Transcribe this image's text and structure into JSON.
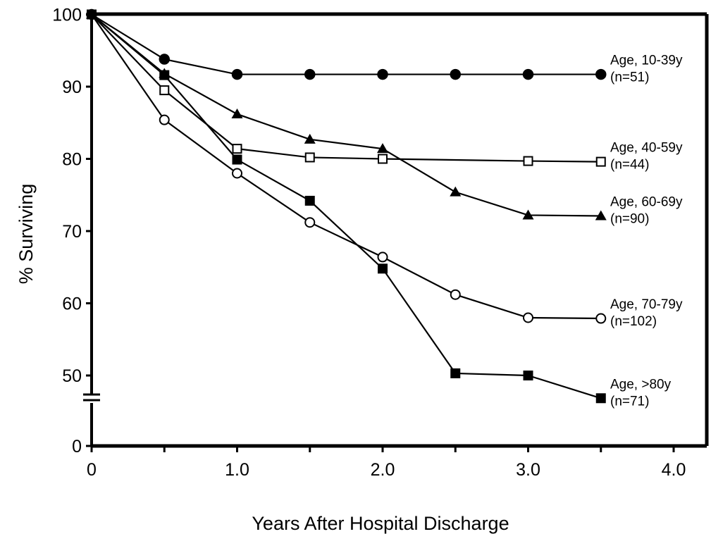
{
  "chart_data": {
    "type": "line",
    "xlabel": "Years After Hospital Discharge",
    "ylabel": "% Surviving",
    "xlim": [
      0,
      4.0
    ],
    "ylim": [
      0,
      100
    ],
    "y_axis_break": [
      0,
      50
    ],
    "grid": false,
    "frame": "box",
    "x_ticks": [
      0,
      1.0,
      2.0,
      3.0,
      4.0
    ],
    "x_tick_labels": [
      "0",
      "1.0",
      "2.0",
      "3.0",
      "4.0"
    ],
    "y_ticks": [
      0,
      50,
      60,
      70,
      80,
      90,
      100
    ],
    "y_tick_labels": [
      "0",
      "50",
      "60",
      "70",
      "80",
      "90",
      "100"
    ],
    "x": [
      0,
      0.5,
      1.0,
      1.5,
      2.0,
      2.5,
      3.0,
      3.5
    ],
    "series": [
      {
        "name": "Age, 10-39y",
        "count": "(n=51)",
        "marker": "filled-circle",
        "values": [
          100,
          93.8,
          91.7,
          91.7,
          91.7,
          91.7,
          91.7,
          91.7
        ]
      },
      {
        "name": "Age, 40-59y",
        "count": "(n=44)",
        "marker": "open-square",
        "values": [
          100,
          89.5,
          81.4,
          80.2,
          80.0,
          null,
          79.7,
          79.6
        ]
      },
      {
        "name": "Age, 60-69y",
        "count": "(n=90)",
        "marker": "filled-triangle",
        "values": [
          100,
          91.8,
          86.2,
          82.7,
          81.4,
          75.4,
          72.2,
          72.1
        ]
      },
      {
        "name": "Age, 70-79y",
        "count": "(n=102)",
        "marker": "open-circle",
        "values": [
          100,
          85.4,
          78.0,
          71.2,
          66.4,
          61.2,
          58.0,
          57.9
        ]
      },
      {
        "name": "Age, >80y",
        "count": "(n=71)",
        "marker": "filled-square",
        "values": [
          100,
          91.6,
          79.9,
          74.2,
          64.8,
          50.3,
          50.0,
          49.8
        ]
      }
    ]
  }
}
